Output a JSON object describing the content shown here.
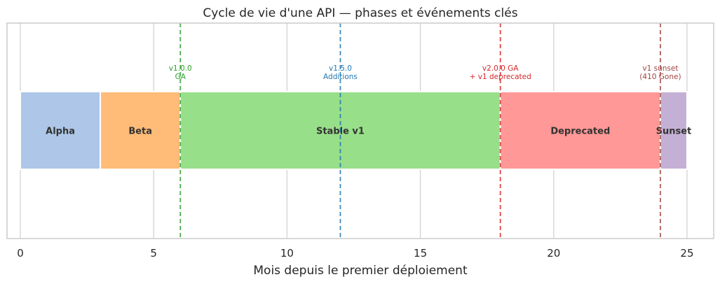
{
  "chart_data": {
    "type": "bar",
    "orientation": "horizontal-timeline",
    "title": "Cycle de vie d'une API — phases et événements clés",
    "xlabel": "Mois depuis le premier déploiement",
    "ylabel": "",
    "xlim": [
      -0.5,
      26
    ],
    "xticks": [
      0,
      5,
      10,
      15,
      20,
      25
    ],
    "grid": true,
    "phases": [
      {
        "label": "Alpha",
        "start": 0,
        "end": 3,
        "color": "#aec7e8"
      },
      {
        "label": "Beta",
        "start": 3,
        "end": 6,
        "color": "#ffbb78"
      },
      {
        "label": "Stable v1",
        "start": 6,
        "end": 18,
        "color": "#98df8a"
      },
      {
        "label": "Deprecated",
        "start": 18,
        "end": 24,
        "color": "#ff9896"
      },
      {
        "label": "Sunset",
        "start": 24,
        "end": 25,
        "color": "#c5b0d5"
      }
    ],
    "events": [
      {
        "x": 6,
        "lines": [
          "v1.0.0",
          "GA"
        ],
        "color": "#2ca02c"
      },
      {
        "x": 12,
        "lines": [
          "v1.5.0",
          "Additions"
        ],
        "color": "#1f77b4"
      },
      {
        "x": 18,
        "lines": [
          "v2.0.0 GA",
          "+ v1 deprecated"
        ],
        "color": "#d62728"
      },
      {
        "x": 24,
        "lines": [
          "v1 sunset",
          "(410 Gone)"
        ],
        "color": "#a0433f"
      }
    ]
  }
}
